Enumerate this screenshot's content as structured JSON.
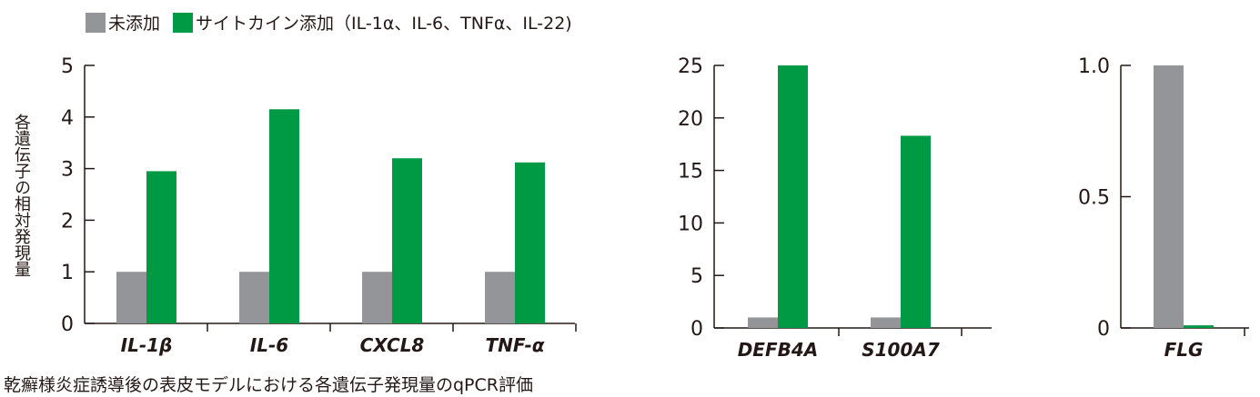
{
  "legend": {
    "control": "未添加",
    "cytokine": "サイトカイン添加（IL-1α、IL-6、TNFα、IL-22)"
  },
  "ylabel": "各遺伝子の相対発現量",
  "caption": "乾癬様炎症誘導後の表皮モデルにおける各遺伝子発現量のqPCR評価",
  "colors": {
    "control": "#939598",
    "cytokine": "#009944",
    "axis": "#231815"
  },
  "chart_data": [
    {
      "type": "bar",
      "categories": [
        "IL-1β",
        "IL-6",
        "CXCL8",
        "TNF-α"
      ],
      "series": [
        {
          "name": "未添加",
          "values": [
            1,
            1,
            1,
            1
          ]
        },
        {
          "name": "サイトカイン添加（IL-1α、IL-6、TNFα、IL-22)",
          "values": [
            2.95,
            4.15,
            3.2,
            3.12
          ]
        }
      ],
      "ylim": [
        0,
        5
      ],
      "yticks": [
        "0",
        "1",
        "2",
        "3",
        "4",
        "5"
      ],
      "ylabel": "各遺伝子の相対発現量"
    },
    {
      "type": "bar",
      "categories": [
        "DEFB4A",
        "S100A7"
      ],
      "series": [
        {
          "name": "未添加",
          "values": [
            1,
            1
          ]
        },
        {
          "name": "サイトカイン添加（IL-1α、IL-6、TNFα、IL-22)",
          "values": [
            25,
            18.3
          ]
        }
      ],
      "ylim": [
        0,
        25
      ],
      "yticks": [
        "0",
        "5",
        "10",
        "15",
        "20",
        "25"
      ]
    },
    {
      "type": "bar",
      "categories": [
        "FLG"
      ],
      "series": [
        {
          "name": "未添加",
          "values": [
            1.0
          ]
        },
        {
          "name": "サイトカイン添加（IL-1α、IL-6、TNFα、IL-22)",
          "values": [
            0.01
          ]
        }
      ],
      "ylim": [
        0,
        1.0
      ],
      "yticks": [
        "0",
        "0.5",
        "1.0"
      ]
    }
  ]
}
